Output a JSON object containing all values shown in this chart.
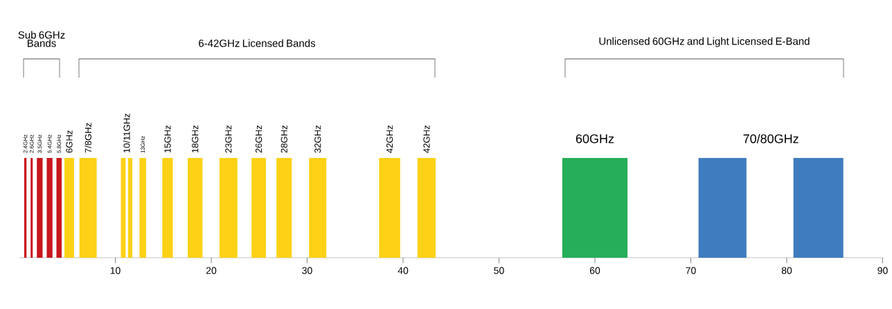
{
  "chart_data": {
    "type": "bar",
    "orientation": "horizontal",
    "categories": [
      null
    ],
    "xlim": [
      0,
      90
    ],
    "xticks": [
      10,
      20,
      30,
      40,
      50,
      60,
      70,
      80,
      90
    ],
    "series": [
      {
        "name": "2.4GHz",
        "color": "#c8161d",
        "base": [
          0.5
        ],
        "values": [
          0.24
        ]
      },
      {
        "name": "2.6GHz",
        "color": "#c8161d",
        "base": [
          1.17
        ],
        "values": [
          0.22
        ]
      },
      {
        "name": "3.5GHz",
        "color": "#c8161d",
        "base": [
          1.82
        ],
        "values": [
          0.6
        ]
      },
      {
        "name": "5.4GHz",
        "color": "#c8161d",
        "base": [
          2.85
        ],
        "values": [
          0.6
        ]
      },
      {
        "name": "5.8GHz",
        "color": "#c8161d",
        "base": [
          3.86
        ],
        "values": [
          0.55
        ]
      },
      {
        "name": "6GHz",
        "color": "#fcd116",
        "base": [
          4.7
        ],
        "values": [
          1.0
        ]
      },
      {
        "name": "7/8GHz",
        "color": "#fcd116",
        "base": [
          6.26
        ],
        "values": [
          1.8
        ]
      },
      {
        "name": "10/11GHz",
        "color": "#fcd116",
        "base": [
          10.58
        ],
        "values": [
          0.5
        ]
      },
      {
        "color": "#fcd116",
        "base": [
          11.32
        ],
        "values": [
          0.46
        ]
      },
      {
        "name": "13GHz",
        "color": "#fcd116",
        "base": [
          12.52
        ],
        "values": [
          0.69
        ]
      },
      {
        "name": "15GHz",
        "color": "#fcd116",
        "base": [
          14.9
        ],
        "values": [
          1.1
        ]
      },
      {
        "name": "18GHz",
        "color": "#fcd116",
        "base": [
          17.55
        ],
        "values": [
          1.54
        ]
      },
      {
        "name": "23GHz",
        "color": "#fcd116",
        "base": [
          20.86
        ],
        "values": [
          1.87
        ]
      },
      {
        "name": "26GHz",
        "color": "#fcd116",
        "base": [
          24.2
        ],
        "values": [
          1.5
        ]
      },
      {
        "name": "28GHz",
        "color": "#fcd116",
        "base": [
          26.8
        ],
        "values": [
          1.6
        ]
      },
      {
        "name": "32GHz",
        "color": "#fcd116",
        "base": [
          30.2
        ],
        "values": [
          1.8
        ]
      },
      {
        "name": "42GHz",
        "color": "#fcd116",
        "base": [
          37.5
        ],
        "values": [
          2.2
        ]
      },
      {
        "name": "42GHz",
        "color": "#fcd116",
        "base": [
          41.5
        ],
        "values": [
          1.9
        ]
      },
      {
        "name": "60GHz",
        "color": "#27ae5a",
        "base": [
          56.6
        ],
        "values": [
          6.8
        ]
      },
      {
        "name": "70/80GHz",
        "color": "#3f7cbf",
        "base": [
          70.8
        ],
        "values": [
          5.0
        ]
      },
      {
        "color": "#3f7cbf",
        "base": [
          80.7
        ],
        "values": [
          5.2
        ]
      }
    ],
    "annotations": [
      "Sub 6GHz Bands",
      "6-42GHz Licensed Bands",
      "Unlicensed 60GHz and Light Licensed E-Band"
    ]
  }
}
